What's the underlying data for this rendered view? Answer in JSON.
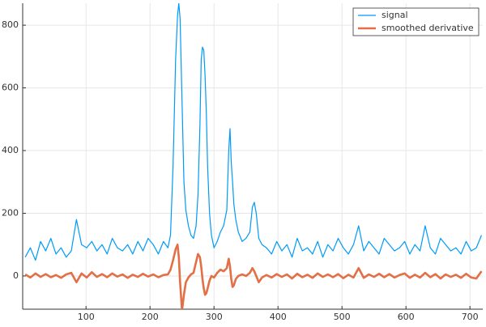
{
  "chart_data": {
    "type": "line",
    "x": [
      5,
      13,
      21,
      29,
      37,
      45,
      53,
      61,
      69,
      77,
      85,
      93,
      101,
      109,
      117,
      125,
      133,
      141,
      149,
      157,
      165,
      173,
      181,
      189,
      197,
      205,
      213,
      221,
      228,
      232,
      236,
      240,
      243,
      245,
      247,
      250,
      253,
      256,
      260,
      264,
      268,
      272,
      275,
      278,
      280,
      282,
      284,
      286,
      288,
      290,
      293,
      296,
      300,
      305,
      310,
      315,
      320,
      323,
      325,
      327,
      329,
      331,
      334,
      338,
      344,
      350,
      356,
      360,
      363,
      366,
      370,
      375,
      382,
      390,
      398,
      406,
      414,
      422,
      430,
      438,
      446,
      454,
      462,
      470,
      478,
      486,
      494,
      502,
      510,
      518,
      526,
      534,
      542,
      550,
      558,
      566,
      574,
      582,
      590,
      598,
      606,
      614,
      622,
      630,
      638,
      646,
      654,
      662,
      670,
      678,
      686,
      694,
      702,
      710,
      718
    ],
    "series": [
      {
        "name": "signal",
        "color": "#009af9",
        "width": 1.2,
        "values": [
          60,
          90,
          50,
          110,
          80,
          120,
          70,
          90,
          60,
          80,
          180,
          100,
          90,
          110,
          80,
          100,
          70,
          120,
          90,
          80,
          100,
          70,
          110,
          80,
          120,
          100,
          70,
          110,
          90,
          130,
          350,
          690,
          830,
          870,
          820,
          560,
          300,
          210,
          160,
          130,
          120,
          160,
          260,
          480,
          690,
          730,
          720,
          640,
          520,
          350,
          200,
          130,
          90,
          110,
          140,
          160,
          210,
          400,
          470,
          360,
          300,
          230,
          180,
          140,
          110,
          120,
          140,
          220,
          235,
          200,
          120,
          100,
          90,
          70,
          110,
          80,
          100,
          60,
          120,
          80,
          90,
          70,
          110,
          60,
          100,
          80,
          120,
          90,
          70,
          100,
          160,
          80,
          110,
          90,
          70,
          120,
          100,
          80,
          90,
          110,
          70,
          100,
          80,
          160,
          90,
          70,
          120,
          100,
          80,
          90,
          70,
          110,
          80,
          90,
          130
        ]
      },
      {
        "name": "smoothed derivative",
        "color": "#e26f46",
        "width": 2.6,
        "values": [
          5,
          -5,
          8,
          -3,
          6,
          -4,
          3,
          -6,
          5,
          10,
          -20,
          8,
          -5,
          12,
          -3,
          6,
          -4,
          8,
          -2,
          5,
          -6,
          4,
          -3,
          7,
          -2,
          5,
          -4,
          3,
          5,
          20,
          50,
          85,
          100,
          60,
          -20,
          -110,
          -60,
          -20,
          -5,
          5,
          10,
          45,
          70,
          60,
          30,
          -10,
          -40,
          -60,
          -55,
          -40,
          -15,
          0,
          -5,
          10,
          20,
          15,
          25,
          55,
          30,
          -10,
          -35,
          -30,
          -10,
          0,
          5,
          0,
          10,
          25,
          15,
          0,
          -20,
          -5,
          3,
          -5,
          6,
          -3,
          5,
          -8,
          7,
          -4,
          4,
          -6,
          8,
          -3,
          5,
          -4,
          6,
          -7,
          4,
          -5,
          25,
          -6,
          5,
          -3,
          7,
          -4,
          6,
          -5,
          3,
          8,
          -6,
          4,
          -5,
          10,
          -4,
          6,
          -8,
          5,
          -3,
          4,
          -6,
          7,
          -5,
          -8,
          15
        ]
      }
    ],
    "xlim": [
      1,
      720
    ],
    "xticks": [
      100,
      200,
      300,
      400,
      500,
      600,
      700
    ],
    "ylim": [
      -106,
      870
    ],
    "yticks": [
      0,
      200,
      400,
      600,
      800
    ],
    "grid": true,
    "legend": "top-right"
  }
}
